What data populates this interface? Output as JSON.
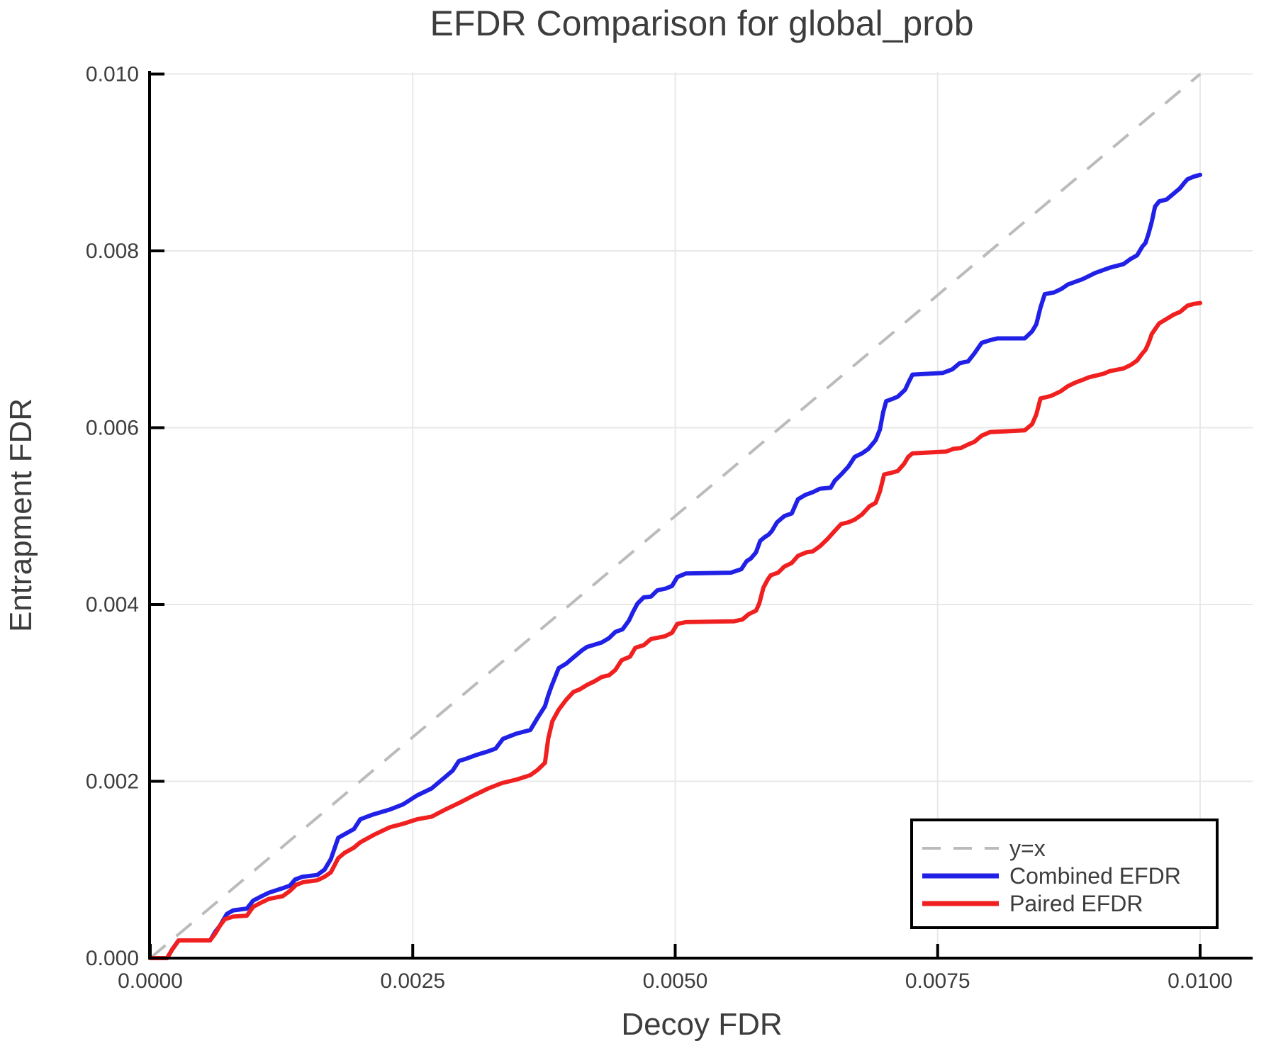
{
  "title": "EFDR Comparison for global_prob",
  "colors": {
    "combined": "#2020e6",
    "paired": "#f02020",
    "identity": "#bbbbbb",
    "grid": "#e8e8e8",
    "axis": "#000000",
    "text": "#3d3d3d"
  },
  "chart_data": {
    "type": "line",
    "title": "EFDR Comparison for global_prob",
    "xlabel": "Decoy FDR",
    "ylabel": "Entrapment FDR",
    "grid": true,
    "legend_position": "lower right",
    "xlim": [
      0,
      0.0105
    ],
    "ylim": [
      0,
      0.01002
    ],
    "x_ticks": {
      "values": [
        0,
        0.0025,
        0.005,
        0.0075,
        0.01
      ],
      "labels": [
        "0.0000",
        "0.0025",
        "0.0050",
        "0.0075",
        "0.0100"
      ]
    },
    "y_ticks": {
      "values": [
        0,
        0.002,
        0.004,
        0.006,
        0.008,
        0.01
      ],
      "labels": [
        "0.000",
        "0.002",
        "0.004",
        "0.006",
        "0.008",
        "0.010"
      ]
    },
    "series": [
      {
        "name": "y=x",
        "color": "#bbbbbb",
        "style": "dashed",
        "width": 4,
        "points": [
          [
            0,
            0
          ],
          [
            0.01,
            0.01
          ]
        ]
      },
      {
        "name": "Combined EFDR",
        "color": "#2020e6",
        "style": "solid",
        "width": 6,
        "points": [
          [
            0,
            0
          ],
          [
            0.00016,
            0
          ],
          [
            0.00021,
            0.0001
          ],
          [
            0.00027,
            0.0002
          ],
          [
            0.00057,
            0.0002
          ],
          [
            0.00062,
            0.0003
          ],
          [
            0.00066,
            0.00036
          ],
          [
            0.00071,
            0.00046
          ],
          [
            0.00073,
            0.0005
          ],
          [
            0.00079,
            0.00054
          ],
          [
            0.00092,
            0.00056
          ],
          [
            0.00098,
            0.00065
          ],
          [
            0.00106,
            0.0007
          ],
          [
            0.00113,
            0.00074
          ],
          [
            0.00126,
            0.00079
          ],
          [
            0.00133,
            0.00082
          ],
          [
            0.00138,
            0.00089
          ],
          [
            0.00145,
            0.00092
          ],
          [
            0.00159,
            0.00094
          ],
          [
            0.00166,
            0.001
          ],
          [
            0.00172,
            0.00112
          ],
          [
            0.00179,
            0.00136
          ],
          [
            0.00185,
            0.0014
          ],
          [
            0.00194,
            0.00146
          ],
          [
            0.002,
            0.00157
          ],
          [
            0.00211,
            0.00162
          ],
          [
            0.00228,
            0.00168
          ],
          [
            0.00241,
            0.00174
          ],
          [
            0.00254,
            0.00184
          ],
          [
            0.00268,
            0.00192
          ],
          [
            0.0028,
            0.00204
          ],
          [
            0.00288,
            0.00212
          ],
          [
            0.00294,
            0.00223
          ],
          [
            0.00302,
            0.00226
          ],
          [
            0.00311,
            0.0023
          ],
          [
            0.00322,
            0.00234
          ],
          [
            0.00329,
            0.00237
          ],
          [
            0.00336,
            0.00248
          ],
          [
            0.00349,
            0.00254
          ],
          [
            0.00362,
            0.00258
          ],
          [
            0.00369,
            0.00272
          ],
          [
            0.00376,
            0.00285
          ],
          [
            0.00379,
            0.00297
          ],
          [
            0.00382,
            0.00307
          ],
          [
            0.00389,
            0.00328
          ],
          [
            0.00396,
            0.00333
          ],
          [
            0.00403,
            0.0034
          ],
          [
            0.00411,
            0.00348
          ],
          [
            0.00416,
            0.00352
          ],
          [
            0.0043,
            0.00357
          ],
          [
            0.00437,
            0.00362
          ],
          [
            0.00443,
            0.00369
          ],
          [
            0.0045,
            0.00372
          ],
          [
            0.00456,
            0.00382
          ],
          [
            0.0046,
            0.00392
          ],
          [
            0.00464,
            0.00401
          ],
          [
            0.0047,
            0.00408
          ],
          [
            0.00477,
            0.00409
          ],
          [
            0.00483,
            0.00416
          ],
          [
            0.00491,
            0.00418
          ],
          [
            0.00497,
            0.00421
          ],
          [
            0.00502,
            0.00431
          ],
          [
            0.0051,
            0.00435
          ],
          [
            0.00553,
            0.00436
          ],
          [
            0.00563,
            0.0044
          ],
          [
            0.00568,
            0.00449
          ],
          [
            0.00572,
            0.00452
          ],
          [
            0.00577,
            0.00459
          ],
          [
            0.00581,
            0.00472
          ],
          [
            0.00585,
            0.00476
          ],
          [
            0.00589,
            0.00479
          ],
          [
            0.00592,
            0.00483
          ],
          [
            0.00597,
            0.00493
          ],
          [
            0.00604,
            0.005
          ],
          [
            0.00611,
            0.00503
          ],
          [
            0.00617,
            0.00519
          ],
          [
            0.00624,
            0.00524
          ],
          [
            0.00631,
            0.00527
          ],
          [
            0.00638,
            0.00531
          ],
          [
            0.00648,
            0.00532
          ],
          [
            0.00652,
            0.0054
          ],
          [
            0.00658,
            0.00547
          ],
          [
            0.00665,
            0.00556
          ],
          [
            0.00671,
            0.00567
          ],
          [
            0.00678,
            0.00571
          ],
          [
            0.00684,
            0.00576
          ],
          [
            0.00691,
            0.00586
          ],
          [
            0.00695,
            0.00598
          ],
          [
            0.00698,
            0.00617
          ],
          [
            0.00701,
            0.0063
          ],
          [
            0.00708,
            0.00633
          ],
          [
            0.00712,
            0.00635
          ],
          [
            0.00719,
            0.00643
          ],
          [
            0.00723,
            0.00653
          ],
          [
            0.00726,
            0.0066
          ],
          [
            0.00755,
            0.00662
          ],
          [
            0.00764,
            0.00666
          ],
          [
            0.00771,
            0.00673
          ],
          [
            0.00779,
            0.00675
          ],
          [
            0.00785,
            0.00684
          ],
          [
            0.00792,
            0.00696
          ],
          [
            0.008,
            0.00699
          ],
          [
            0.00807,
            0.00701
          ],
          [
            0.00833,
            0.00701
          ],
          [
            0.0084,
            0.00709
          ],
          [
            0.00844,
            0.00717
          ],
          [
            0.00848,
            0.00736
          ],
          [
            0.00852,
            0.00751
          ],
          [
            0.00861,
            0.00753
          ],
          [
            0.00868,
            0.00757
          ],
          [
            0.00874,
            0.00762
          ],
          [
            0.00881,
            0.00765
          ],
          [
            0.00888,
            0.00768
          ],
          [
            0.009,
            0.00775
          ],
          [
            0.00914,
            0.00781
          ],
          [
            0.00927,
            0.00785
          ],
          [
            0.00934,
            0.00791
          ],
          [
            0.0094,
            0.00795
          ],
          [
            0.00945,
            0.00805
          ],
          [
            0.00948,
            0.00809
          ],
          [
            0.00951,
            0.0082
          ],
          [
            0.00954,
            0.00833
          ],
          [
            0.00957,
            0.0085
          ],
          [
            0.00961,
            0.00856
          ],
          [
            0.00968,
            0.00858
          ],
          [
            0.00974,
            0.00864
          ],
          [
            0.00981,
            0.00871
          ],
          [
            0.00985,
            0.00877
          ],
          [
            0.00988,
            0.00881
          ],
          [
            0.00994,
            0.00884
          ],
          [
            0.01,
            0.00886
          ]
        ]
      },
      {
        "name": "Paired EFDR",
        "color": "#f02020",
        "style": "solid",
        "width": 6,
        "points": [
          [
            0,
            0
          ],
          [
            0.00016,
            0
          ],
          [
            0.00021,
            0.0001
          ],
          [
            0.00027,
            0.0002
          ],
          [
            0.00057,
            0.0002
          ],
          [
            0.00062,
            0.00028
          ],
          [
            0.00066,
            0.00036
          ],
          [
            0.00071,
            0.00044
          ],
          [
            0.00079,
            0.00047
          ],
          [
            0.00092,
            0.00048
          ],
          [
            0.00098,
            0.00058
          ],
          [
            0.00106,
            0.00063
          ],
          [
            0.00113,
            0.00067
          ],
          [
            0.00126,
            0.0007
          ],
          [
            0.00133,
            0.00076
          ],
          [
            0.00139,
            0.00083
          ],
          [
            0.00146,
            0.00086
          ],
          [
            0.00159,
            0.00088
          ],
          [
            0.00166,
            0.00092
          ],
          [
            0.00172,
            0.00097
          ],
          [
            0.00179,
            0.00113
          ],
          [
            0.00185,
            0.00119
          ],
          [
            0.00194,
            0.00125
          ],
          [
            0.002,
            0.00131
          ],
          [
            0.00214,
            0.0014
          ],
          [
            0.00228,
            0.00148
          ],
          [
            0.00241,
            0.00152
          ],
          [
            0.00254,
            0.00157
          ],
          [
            0.00268,
            0.0016
          ],
          [
            0.00281,
            0.00168
          ],
          [
            0.00295,
            0.00176
          ],
          [
            0.00308,
            0.00184
          ],
          [
            0.00322,
            0.00192
          ],
          [
            0.00335,
            0.00198
          ],
          [
            0.00349,
            0.00202
          ],
          [
            0.00362,
            0.00207
          ],
          [
            0.00369,
            0.00213
          ],
          [
            0.00376,
            0.00221
          ],
          [
            0.00379,
            0.00248
          ],
          [
            0.00383,
            0.00268
          ],
          [
            0.00389,
            0.00281
          ],
          [
            0.00396,
            0.00292
          ],
          [
            0.00403,
            0.00301
          ],
          [
            0.00409,
            0.00304
          ],
          [
            0.00416,
            0.00309
          ],
          [
            0.00423,
            0.00313
          ],
          [
            0.0043,
            0.00318
          ],
          [
            0.00437,
            0.0032
          ],
          [
            0.00443,
            0.00326
          ],
          [
            0.00449,
            0.00337
          ],
          [
            0.00457,
            0.00341
          ],
          [
            0.00462,
            0.00351
          ],
          [
            0.0047,
            0.00354
          ],
          [
            0.00477,
            0.00361
          ],
          [
            0.0049,
            0.00364
          ],
          [
            0.00497,
            0.00368
          ],
          [
            0.00502,
            0.00378
          ],
          [
            0.0051,
            0.0038
          ],
          [
            0.00556,
            0.00381
          ],
          [
            0.00564,
            0.00383
          ],
          [
            0.0057,
            0.00389
          ],
          [
            0.00577,
            0.00393
          ],
          [
            0.0058,
            0.00401
          ],
          [
            0.00584,
            0.00419
          ],
          [
            0.00588,
            0.00428
          ],
          [
            0.00591,
            0.00433
          ],
          [
            0.00598,
            0.00436
          ],
          [
            0.00604,
            0.00443
          ],
          [
            0.00611,
            0.00447
          ],
          [
            0.00617,
            0.00455
          ],
          [
            0.00625,
            0.00459
          ],
          [
            0.00631,
            0.0046
          ],
          [
            0.00638,
            0.00466
          ],
          [
            0.00645,
            0.00474
          ],
          [
            0.00651,
            0.00482
          ],
          [
            0.00658,
            0.00491
          ],
          [
            0.00665,
            0.00493
          ],
          [
            0.00671,
            0.00496
          ],
          [
            0.00678,
            0.00502
          ],
          [
            0.00685,
            0.00511
          ],
          [
            0.00691,
            0.00515
          ],
          [
            0.00695,
            0.00528
          ],
          [
            0.00699,
            0.00547
          ],
          [
            0.00706,
            0.00549
          ],
          [
            0.00712,
            0.00551
          ],
          [
            0.00718,
            0.00559
          ],
          [
            0.00722,
            0.00567
          ],
          [
            0.00726,
            0.00571
          ],
          [
            0.00758,
            0.00573
          ],
          [
            0.00765,
            0.00576
          ],
          [
            0.00772,
            0.00577
          ],
          [
            0.00779,
            0.00581
          ],
          [
            0.00785,
            0.00584
          ],
          [
            0.00792,
            0.00591
          ],
          [
            0.008,
            0.00595
          ],
          [
            0.00833,
            0.00597
          ],
          [
            0.0084,
            0.00604
          ],
          [
            0.00844,
            0.00615
          ],
          [
            0.00848,
            0.00633
          ],
          [
            0.00858,
            0.00636
          ],
          [
            0.00867,
            0.00641
          ],
          [
            0.00874,
            0.00647
          ],
          [
            0.00881,
            0.00651
          ],
          [
            0.00888,
            0.00654
          ],
          [
            0.00894,
            0.00657
          ],
          [
            0.00901,
            0.00659
          ],
          [
            0.00908,
            0.00661
          ],
          [
            0.00914,
            0.00664
          ],
          [
            0.00927,
            0.00667
          ],
          [
            0.00934,
            0.00671
          ],
          [
            0.0094,
            0.00676
          ],
          [
            0.00945,
            0.00684
          ],
          [
            0.00948,
            0.00688
          ],
          [
            0.00951,
            0.00696
          ],
          [
            0.00954,
            0.00706
          ],
          [
            0.00958,
            0.00713
          ],
          [
            0.00961,
            0.00718
          ],
          [
            0.00968,
            0.00723
          ],
          [
            0.00975,
            0.00728
          ],
          [
            0.00981,
            0.00731
          ],
          [
            0.00985,
            0.00735
          ],
          [
            0.00988,
            0.00738
          ],
          [
            0.00994,
            0.0074
          ],
          [
            0.01,
            0.00741
          ]
        ]
      }
    ],
    "legend": {
      "items": [
        {
          "label": "y=x"
        },
        {
          "label": "Combined EFDR"
        },
        {
          "label": "Paired EFDR"
        }
      ]
    }
  }
}
